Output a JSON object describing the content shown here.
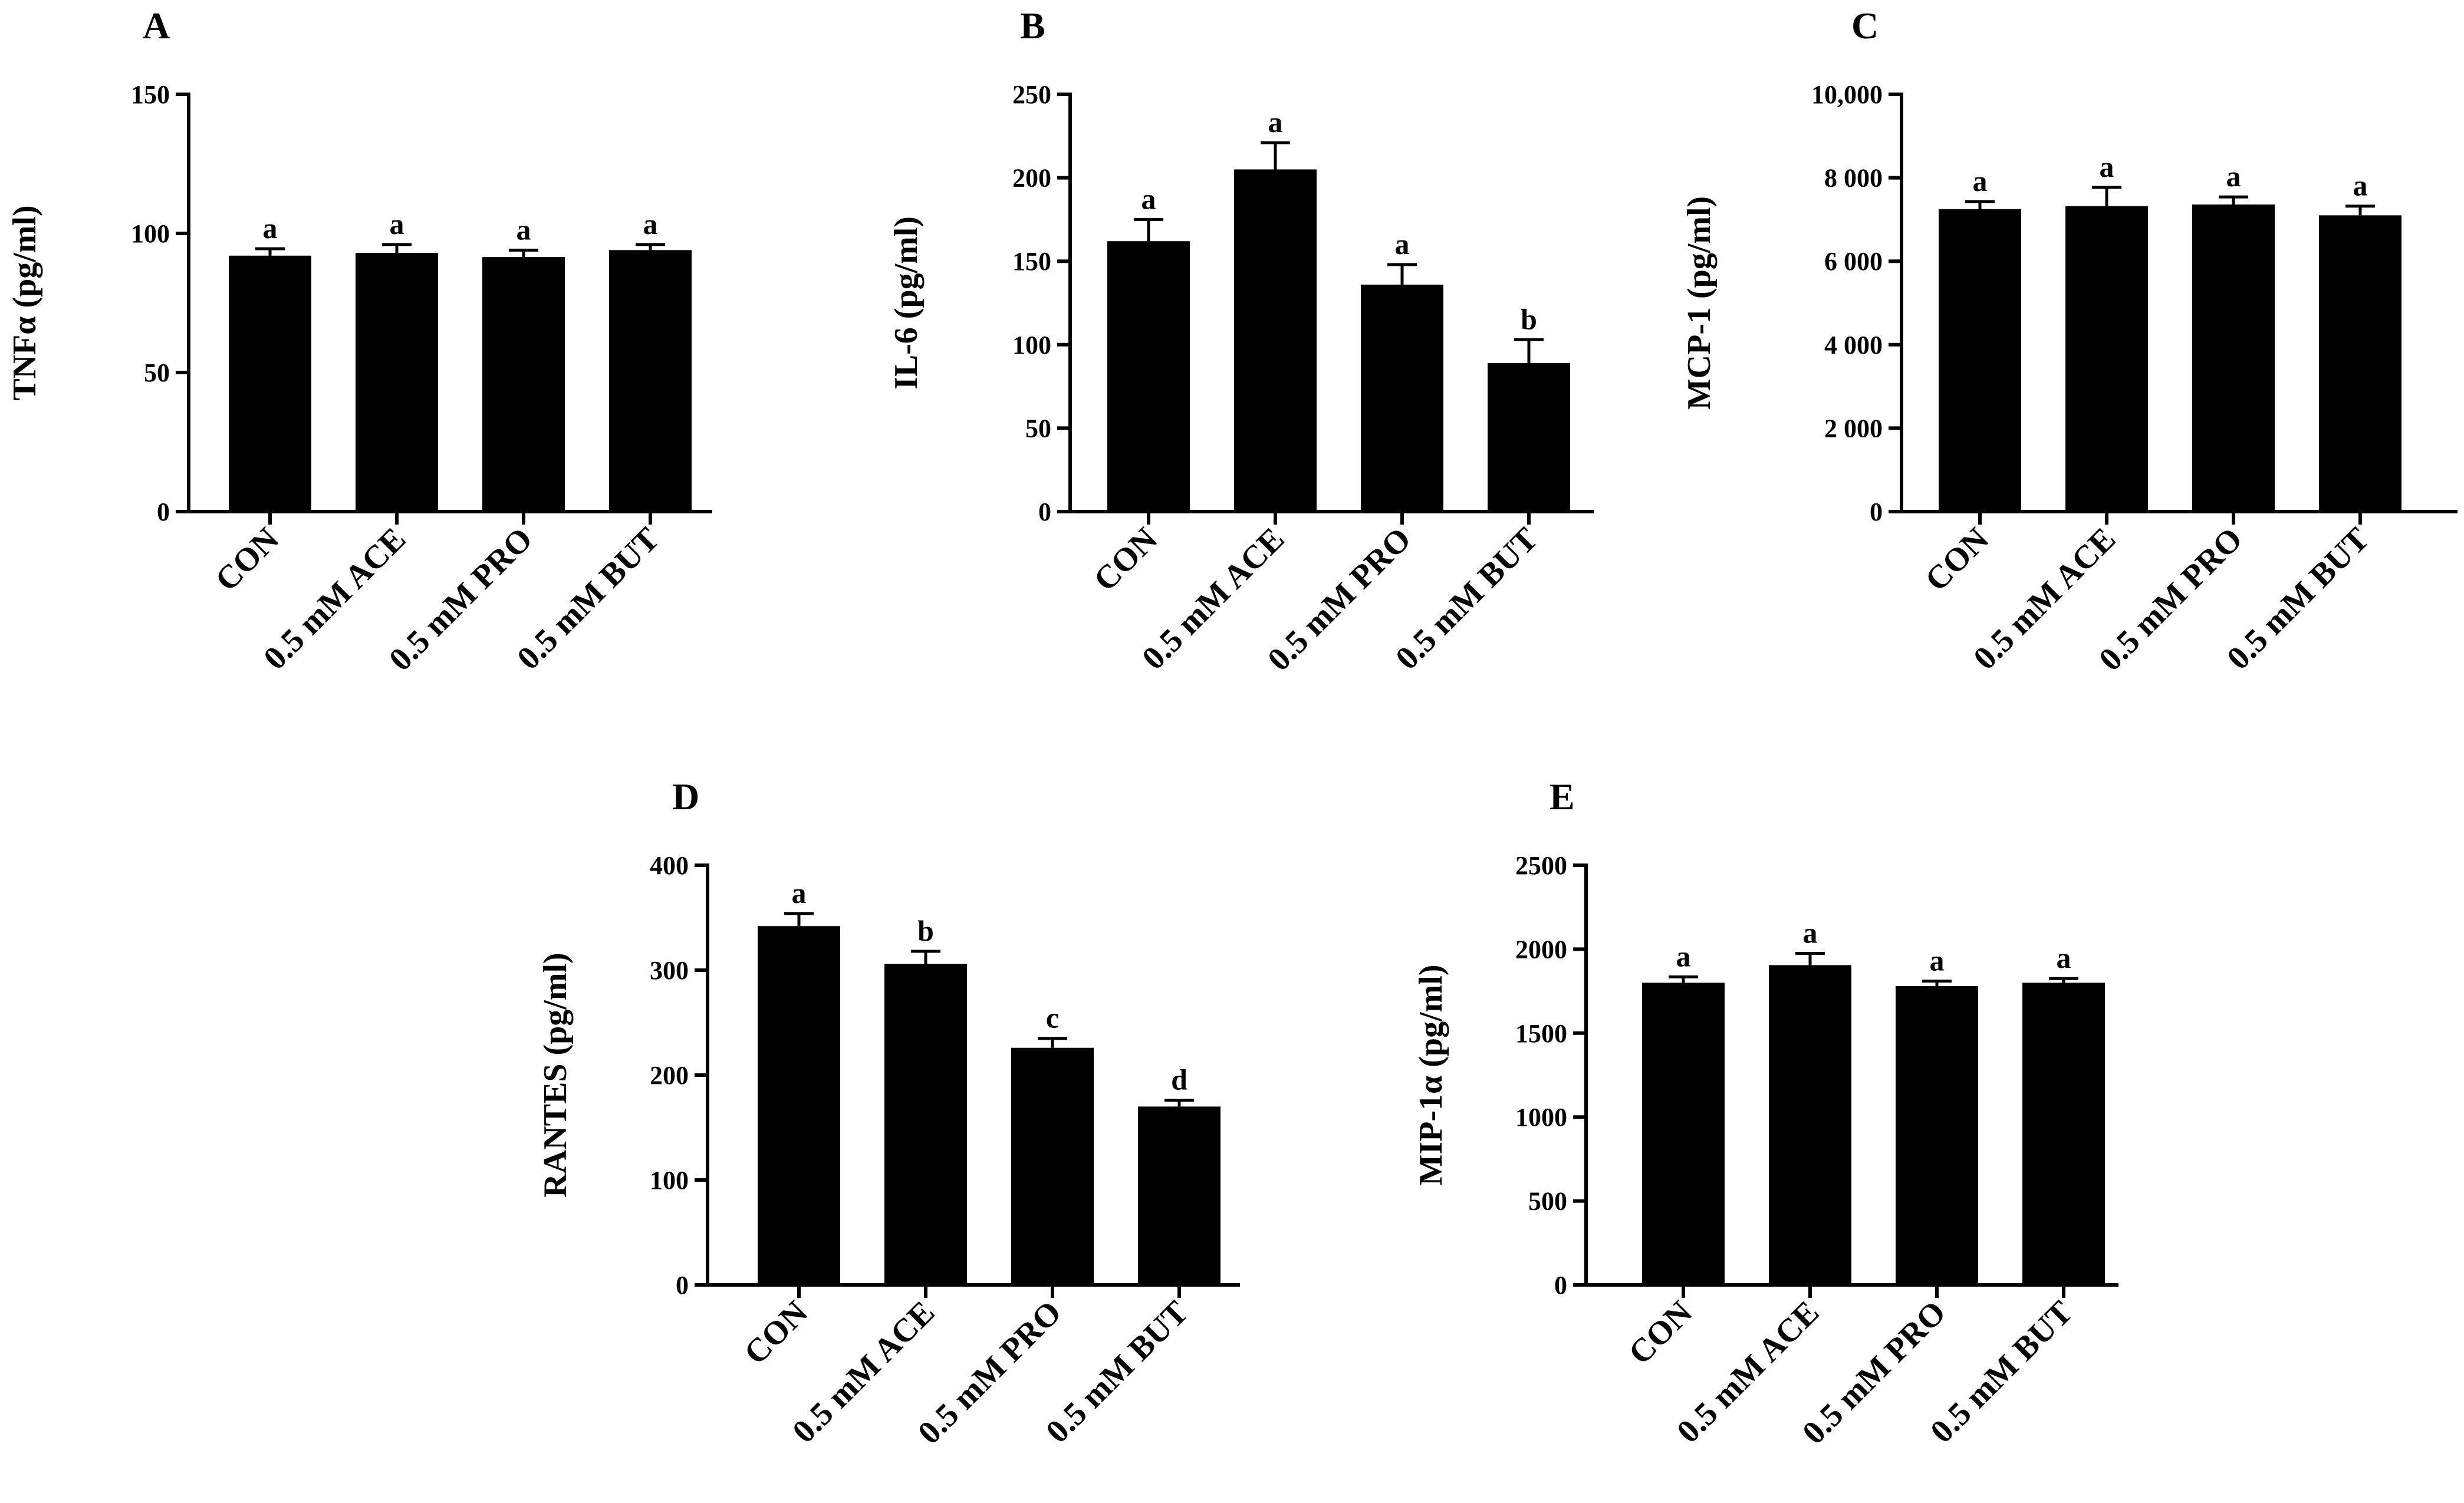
{
  "colors": {
    "bar": "#000000",
    "axis": "#000000",
    "background": "#ffffff"
  },
  "chart_data": [
    {
      "panel": "A",
      "type": "bar",
      "ylabel": "TNFα (pg/ml)",
      "categories": [
        "CON",
        "0.5 mM ACE",
        "0.5 mM PRO",
        "0.5 mM BUT"
      ],
      "values": [
        92,
        93,
        91.5,
        94
      ],
      "errors": [
        2.5,
        3,
        2.5,
        2
      ],
      "significance": [
        "a",
        "a",
        "a",
        "a"
      ],
      "ylim": [
        0,
        150
      ],
      "yticks": [
        0,
        50,
        100,
        150
      ],
      "ytick_labels": [
        "0",
        "50",
        "100",
        "150"
      ]
    },
    {
      "panel": "B",
      "type": "bar",
      "ylabel": "IL-6 (pg/ml)",
      "categories": [
        "CON",
        "0.5 mM ACE",
        "0.5 mM PRO",
        "0.5 mM BUT"
      ],
      "values": [
        162,
        205,
        136,
        89
      ],
      "errors": [
        13,
        16,
        12,
        14
      ],
      "significance": [
        "a",
        "a",
        "a",
        "b"
      ],
      "ylim": [
        0,
        250
      ],
      "yticks": [
        0,
        50,
        100,
        150,
        200,
        250
      ],
      "ytick_labels": [
        "0",
        "50",
        "100",
        "150",
        "200",
        "250"
      ]
    },
    {
      "panel": "C",
      "type": "bar",
      "ylabel": "MCP-1 (pg/ml)",
      "categories": [
        "CON",
        "0.5 mM ACE",
        "0.5 mM PRO",
        "0.5 mM BUT"
      ],
      "values": [
        7250,
        7320,
        7360,
        7100
      ],
      "errors": [
        180,
        450,
        180,
        220
      ],
      "significance": [
        "a",
        "a",
        "a",
        "a"
      ],
      "ylim": [
        0,
        10000
      ],
      "yticks": [
        0,
        2000,
        4000,
        6000,
        8000,
        10000
      ],
      "ytick_labels": [
        "0",
        "2 000",
        "4 000",
        "6 000",
        "8 000",
        "10,000"
      ]
    },
    {
      "panel": "D",
      "type": "bar",
      "ylabel": "RANTES  (pg/ml)",
      "categories": [
        "CON",
        "0.5 mM ACE",
        "0.5 mM PRO",
        "0.5 mM BUT"
      ],
      "values": [
        342,
        306,
        226,
        170
      ],
      "errors": [
        12,
        12,
        9,
        6
      ],
      "significance": [
        "a",
        "b",
        "c",
        "d"
      ],
      "ylim": [
        0,
        400
      ],
      "yticks": [
        0,
        100,
        200,
        300,
        400
      ],
      "ytick_labels": [
        "0",
        "100",
        "200",
        "300",
        "400"
      ]
    },
    {
      "panel": "E",
      "type": "bar",
      "ylabel": "MIP-1α (pg/ml)",
      "categories": [
        "CON",
        "0.5 mM ACE",
        "0.5 mM PRO",
        "0.5 mM BUT"
      ],
      "values": [
        1800,
        1905,
        1780,
        1800
      ],
      "errors": [
        35,
        70,
        30,
        25
      ],
      "significance": [
        "a",
        "a",
        "a",
        "a"
      ],
      "ylim": [
        0,
        2500
      ],
      "yticks": [
        0,
        500,
        1000,
        1500,
        2000,
        2500
      ],
      "ytick_labels": [
        "0",
        "500",
        "1000",
        "1500",
        "2000",
        "2500"
      ]
    }
  ]
}
